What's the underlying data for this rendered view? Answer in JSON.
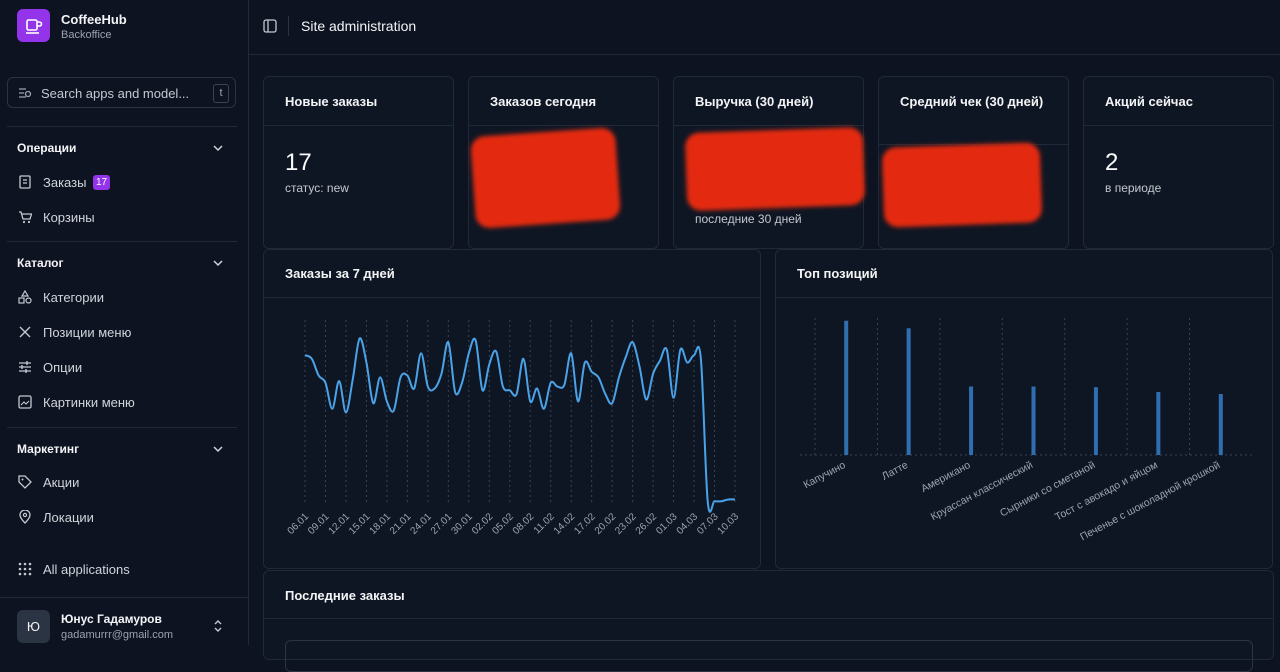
{
  "sidebar": {
    "brand": {
      "name": "CoffeeHub",
      "subtitle": "Backoffice"
    },
    "search": {
      "placeholder": "Search apps and model...",
      "shortcut": "t"
    },
    "sections": [
      {
        "title": "Операции",
        "items": [
          {
            "label": "Заказы",
            "badge": 17
          },
          {
            "label": "Корзины"
          }
        ]
      },
      {
        "title": "Каталог",
        "items": [
          {
            "label": "Категории"
          },
          {
            "label": "Позиции меню"
          },
          {
            "label": "Опции"
          },
          {
            "label": "Картинки меню"
          }
        ]
      },
      {
        "title": "Маркетинг",
        "items": [
          {
            "label": "Акции"
          },
          {
            "label": "Локации"
          }
        ]
      }
    ],
    "all_apps": "All applications",
    "user": {
      "initial": "Ю",
      "name": "Юнус Гадамуров",
      "email": "gadamurrr@gmail.com"
    }
  },
  "header": {
    "title": "Site administration"
  },
  "stats": [
    {
      "title": "Новые заказы",
      "value": 17,
      "caption": "статус: new"
    },
    {
      "title": "Заказов сегодня"
    },
    {
      "title": "Выручка (30 дней)",
      "caption": "последние 30 дней"
    },
    {
      "title": "Средний чек (30 дней)"
    },
    {
      "title": "Акций сейчас",
      "value": 2,
      "caption": "в периоде"
    }
  ],
  "chart_data": [
    {
      "type": "line",
      "title": "Заказы за 7 дней",
      "color": "#4aa3e8",
      "ylim": [
        0,
        10
      ],
      "categories": [
        "06.01",
        null,
        null,
        "09.01",
        null,
        null,
        "12.01",
        null,
        null,
        "15.01",
        null,
        null,
        "18.01",
        null,
        null,
        "21.01",
        null,
        null,
        "24.01",
        null,
        null,
        "27.01",
        null,
        null,
        "30.01",
        null,
        null,
        "02.02",
        null,
        null,
        "05.02",
        null,
        null,
        "08.02",
        null,
        null,
        "11.02",
        null,
        null,
        "14.02",
        null,
        null,
        "17.02",
        null,
        null,
        "20.02",
        null,
        null,
        "23.02",
        null,
        null,
        "26.02",
        null,
        null,
        "01.03",
        null,
        null,
        "04.03",
        null,
        null,
        "07.03",
        null,
        null,
        "10.03"
      ],
      "values": [
        8.1,
        7.9,
        7.0,
        6.6,
        5.2,
        6.7,
        5.0,
        6.8,
        9.0,
        7.7,
        5.5,
        6.9,
        5.6,
        5.1,
        6.9,
        7.0,
        6.3,
        8.2,
        6.4,
        6.3,
        7.1,
        8.8,
        6.1,
        6.6,
        8.2,
        8.9,
        6.2,
        7.6,
        8.3,
        6.4,
        6.2,
        6.0,
        7.9,
        5.6,
        6.3,
        5.2,
        6.6,
        6.4,
        6.5,
        8.2,
        5.6,
        7.7,
        7.2,
        6.9,
        6.0,
        5.5,
        6.9,
        8.0,
        8.8,
        7.5,
        5.7,
        7.1,
        7.8,
        8.4,
        5.8,
        8.4,
        7.7,
        8.1,
        7.9,
        0.2,
        0.2,
        0.2,
        0.3,
        0.3
      ]
    },
    {
      "type": "bar",
      "title": "Топ позиций",
      "color": "#2f6fb0",
      "ylim": [
        0,
        20
      ],
      "categories": [
        "Капучино",
        "Латте",
        "Американо",
        "Круассан классический",
        "Сырники со сметаной",
        "Тост с авокадо и яйцом",
        "Печенье с шоколадной крошкой"
      ],
      "values": [
        19.6,
        18.5,
        10,
        10,
        9.9,
        9.2,
        8.9
      ]
    }
  ],
  "recent_orders": {
    "title": "Последние заказы"
  }
}
